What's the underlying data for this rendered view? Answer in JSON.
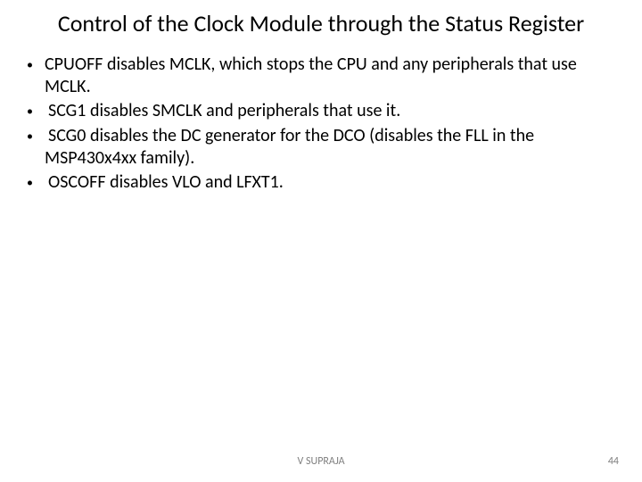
{
  "slide": {
    "title": "Control of the Clock Module through the Status Register",
    "bullets": [
      {
        "text": "CPUOFF disables MCLK, which stops the CPU and any peripherals that use MCLK.",
        "indent": false
      },
      {
        "text": " SCG1 disables SMCLK and peripherals that use it.",
        "indent": true
      },
      {
        "text": " SCG0 disables the DC generator for the DCO (disables the FLL in the MSP430x4xx family).",
        "indent": true
      },
      {
        "text": " OSCOFF disables VLO and LFXT1.",
        "indent": true
      }
    ],
    "footer": {
      "author": "V SUPRAJA",
      "page": "44"
    },
    "styles": {
      "title_fontsize": 26,
      "body_fontsize": 20,
      "footer_fontsize": 12,
      "text_color": "#000000",
      "footer_color": "#7f7f7f",
      "background_color": "#ffffff",
      "bullet_marker": "•"
    }
  }
}
